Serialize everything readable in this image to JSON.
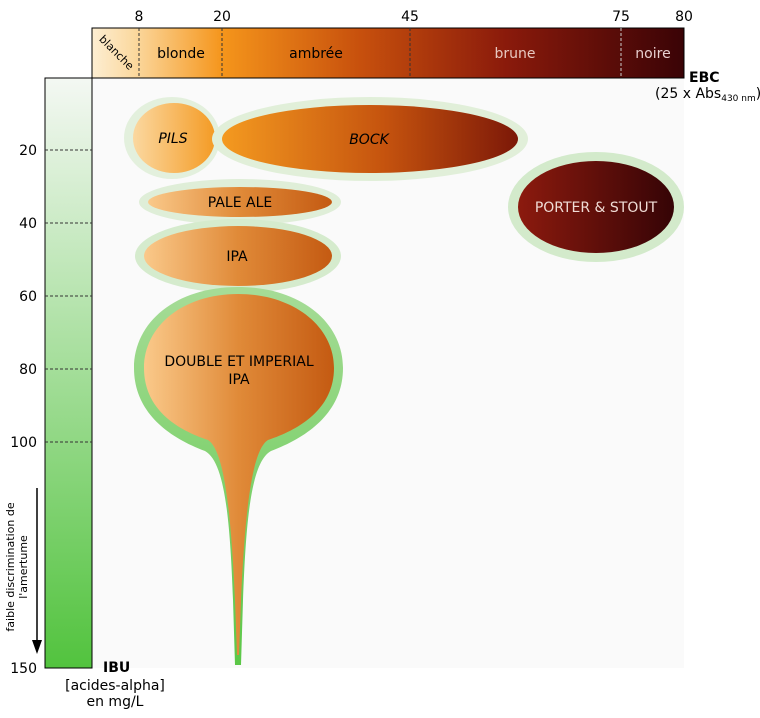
{
  "ebc_axis": {
    "title": "EBC",
    "subtitle_prefix": "(25 x Abs",
    "subtitle_sub": "430 nm",
    "subtitle_suffix": ")",
    "ticks": [
      "8",
      "20",
      "45",
      "75",
      "80"
    ],
    "bands": [
      "blanche",
      "blonde",
      "ambrée",
      "brune",
      "noire"
    ]
  },
  "ibu_axis": {
    "title": "IBU",
    "unit_line1": "[acides-alpha]",
    "unit_line2": "en mg/L",
    "ticks": [
      "20",
      "40",
      "60",
      "80",
      "100",
      "150"
    ],
    "note_line1": "faible discrimination de",
    "note_line2": "l'amertume"
  },
  "styles": {
    "pils": "PILS",
    "bock": "BOCK",
    "porter": "PORTER & STOUT",
    "pale_ale": "PALE ALE",
    "ipa": "IPA",
    "double_line1": "DOUBLE ET IMPERIAL",
    "double_line2": "IPA"
  },
  "colors": {
    "pale": "#fad9a0",
    "orange": "#f59a1e",
    "brown": "#a5300c",
    "dark": "#3c0305",
    "green": "#5ac646"
  }
}
